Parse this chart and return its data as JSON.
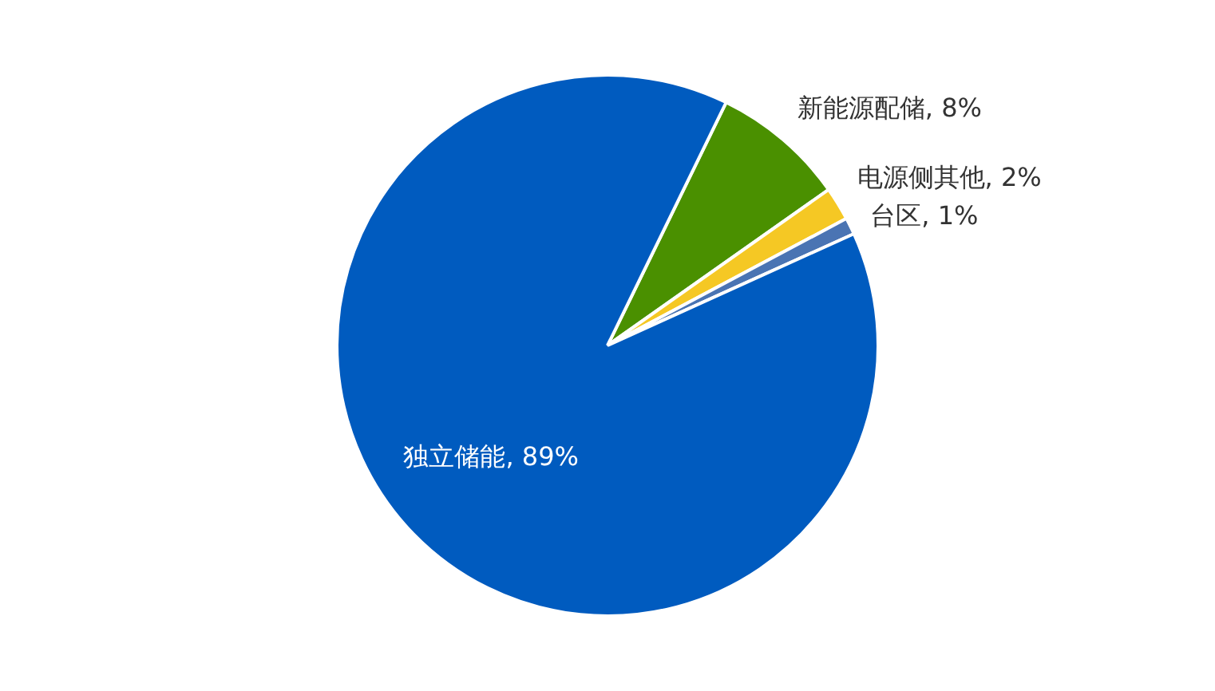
{
  "chart_data": {
    "type": "pie",
    "categories": [
      "新能源配储",
      "电源侧其他",
      "台区",
      "独立储能"
    ],
    "values": [
      8,
      2,
      1,
      89
    ],
    "colors": [
      "#4a9000",
      "#f5c824",
      "#4a74b3",
      "#005bbf"
    ],
    "value_labels": [
      "8%",
      "2%",
      "1%",
      "89%"
    ],
    "legend": false
  }
}
